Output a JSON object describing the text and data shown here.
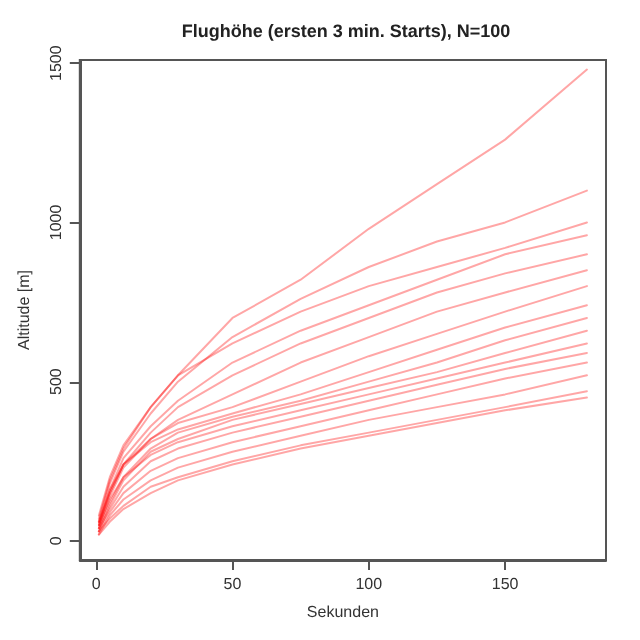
{
  "chart_data": {
    "type": "line",
    "title": "Flughöhe (ersten 3 min. Starts), N=100",
    "xlabel": "Sekunden",
    "ylabel": "Altitude [m]",
    "x": [
      1,
      5,
      10,
      20,
      30,
      50,
      75,
      100,
      125,
      150,
      180
    ],
    "xlim": [
      -6,
      187
    ],
    "ylim": [
      -60,
      1510
    ],
    "xticks": [
      0,
      50,
      100,
      150
    ],
    "yticks": [
      0,
      500,
      1000,
      1500
    ],
    "grid": false,
    "marker": "none",
    "line_style": "solid",
    "series": [
      {
        "color": "#ff0000",
        "values": [
          80,
          200,
          300,
          420,
          520,
          700,
          820,
          980,
          1120,
          1260,
          1480
        ]
      },
      {
        "color": "#ff0000",
        "values": [
          60,
          180,
          280,
          400,
          500,
          640,
          760,
          860,
          940,
          1000,
          1100
        ]
      },
      {
        "color": "#ff0000",
        "values": [
          70,
          190,
          290,
          420,
          520,
          620,
          720,
          800,
          860,
          920,
          1000
        ]
      },
      {
        "color": "#ff0000",
        "values": [
          50,
          160,
          260,
          360,
          440,
          560,
          660,
          740,
          820,
          900,
          960
        ]
      },
      {
        "color": "#ff0000",
        "values": [
          60,
          150,
          240,
          340,
          420,
          520,
          620,
          700,
          780,
          840,
          900
        ]
      },
      {
        "color": "#ff0000",
        "values": [
          40,
          140,
          230,
          320,
          380,
          460,
          560,
          640,
          720,
          780,
          850
        ]
      },
      {
        "color": "#ff0000",
        "values": [
          50,
          150,
          240,
          320,
          370,
          420,
          500,
          580,
          650,
          720,
          800
        ]
      },
      {
        "color": "#ff0000",
        "values": [
          60,
          160,
          240,
          310,
          350,
          400,
          460,
          530,
          600,
          670,
          740
        ]
      },
      {
        "color": "#ff0000",
        "values": [
          40,
          120,
          200,
          290,
          340,
          390,
          440,
          500,
          560,
          630,
          700
        ]
      },
      {
        "color": "#ff0000",
        "values": [
          30,
          110,
          190,
          280,
          320,
          380,
          430,
          480,
          530,
          590,
          660
        ]
      },
      {
        "color": "#ff0000",
        "values": [
          50,
          130,
          200,
          270,
          310,
          360,
          410,
          460,
          510,
          560,
          620
        ]
      },
      {
        "color": "#ff0000",
        "values": [
          40,
          100,
          170,
          250,
          290,
          340,
          390,
          440,
          490,
          540,
          590
        ]
      },
      {
        "color": "#ff0000",
        "values": [
          30,
          90,
          150,
          220,
          260,
          310,
          360,
          410,
          460,
          510,
          560
        ]
      },
      {
        "color": "#ff0000",
        "values": [
          20,
          80,
          130,
          190,
          230,
          280,
          330,
          380,
          420,
          460,
          520
        ]
      },
      {
        "color": "#ff0000",
        "values": [
          30,
          70,
          110,
          170,
          200,
          250,
          300,
          340,
          380,
          420,
          470
        ]
      },
      {
        "color": "#ff0000",
        "values": [
          20,
          60,
          100,
          150,
          190,
          240,
          290,
          330,
          370,
          410,
          450
        ]
      }
    ]
  }
}
